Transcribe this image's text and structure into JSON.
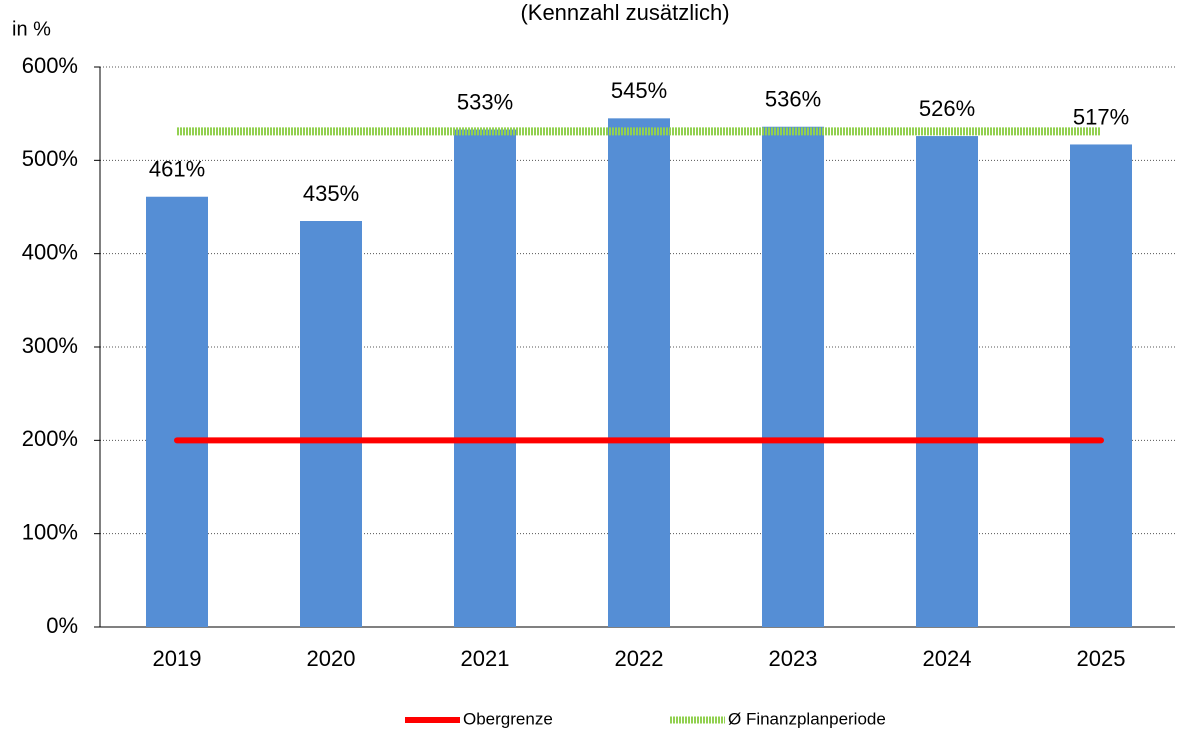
{
  "chart_data": {
    "type": "bar",
    "title": "(Kennzahl zusätzlich)",
    "y_label": "in %",
    "categories": [
      "2019",
      "2020",
      "2021",
      "2022",
      "2023",
      "2024",
      "2025"
    ],
    "values": [
      461,
      435,
      533,
      545,
      536,
      526,
      517
    ],
    "value_labels": [
      "461%",
      "435%",
      "533%",
      "545%",
      "536%",
      "526%",
      "517%"
    ],
    "color": "#558ed5",
    "series": [
      {
        "name": "Obergrenze",
        "type": "line",
        "color": "#ff0000",
        "values": [
          200,
          200,
          200,
          200,
          200,
          200,
          200
        ]
      },
      {
        "name": "Ø Finanzplanperiode",
        "type": "line",
        "color": "#92d050",
        "values": [
          531,
          531,
          531,
          531,
          531,
          531,
          531
        ]
      }
    ],
    "ylim": [
      0,
      600
    ],
    "yticks": [
      {
        "value": 0,
        "label": "0%"
      },
      {
        "value": 100,
        "label": "100%"
      },
      {
        "value": 200,
        "label": "200%"
      },
      {
        "value": 300,
        "label": "300%"
      },
      {
        "value": 400,
        "label": "400%"
      },
      {
        "value": 500,
        "label": "500%"
      },
      {
        "value": 600,
        "label": "600%"
      }
    ],
    "grid": true,
    "legend": "bottom"
  }
}
